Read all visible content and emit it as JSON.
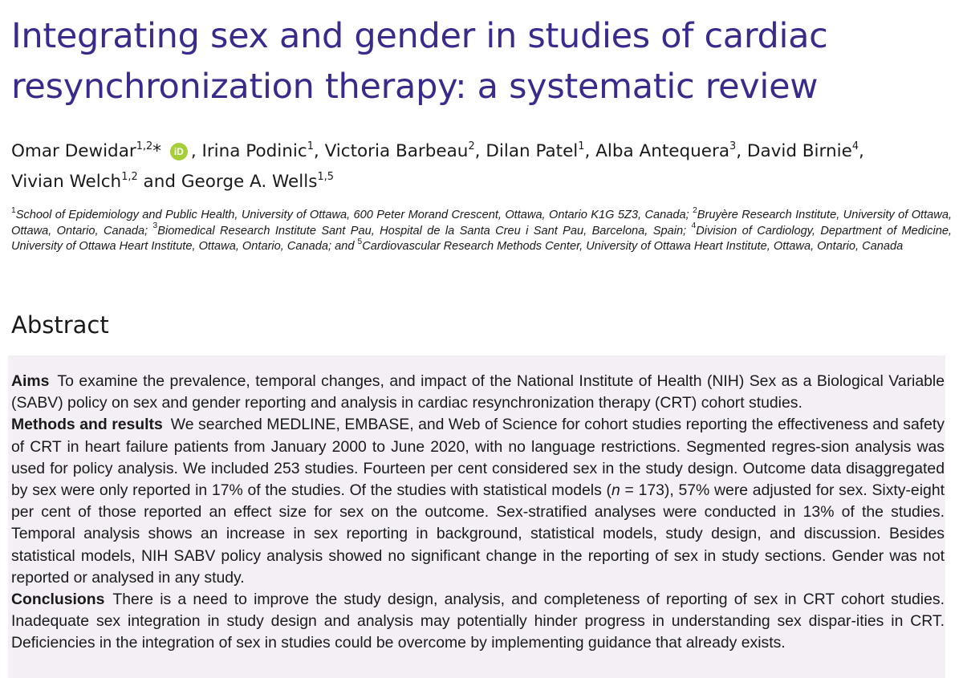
{
  "title": {
    "line1": "Integrating sex and gender in studies of cardiac",
    "line2": "resynchronization therapy: a systematic review"
  },
  "authors": [
    {
      "name": "Omar Dewidar",
      "aff": "1,2",
      "mark": "*",
      "orcid": "iD"
    },
    {
      "name": "Irina Podinic",
      "aff": "1"
    },
    {
      "name": "Victoria Barbeau",
      "aff": "2"
    },
    {
      "name": "Dilan Patel",
      "aff": "1"
    },
    {
      "name": "Alba Antequera",
      "aff": "3"
    },
    {
      "name": "David Birnie",
      "aff": "4"
    },
    {
      "name": "Vivian Welch",
      "aff": "1,2"
    },
    {
      "name": "George A. Wells",
      "aff": "1,5"
    }
  ],
  "authors_sep": ", ",
  "authors_and": " and ",
  "affiliations": [
    {
      "num": "1",
      "text": "School of Epidemiology and Public Health, University of Ottawa, 600 Peter Morand Crescent, Ottawa, Ontario K1G 5Z3, Canada; "
    },
    {
      "num": "2",
      "text": "Bruyère Research Institute, University of Ottawa, Ottawa, Ontario, Canada; "
    },
    {
      "num": "3",
      "text": "Biomedical Research Institute Sant Pau, Hospital de la Santa Creu i Sant Pau, Barcelona, Spain; "
    },
    {
      "num": "4",
      "text": "Division of Cardiology, Department of Medicine, University of Ottawa Heart Institute, Ottawa, Ontario, Canada; and "
    },
    {
      "num": "5",
      "text": "Cardiovascular Research Methods Center, University of Ottawa Heart Institute, Ottawa, Ontario, Canada"
    }
  ],
  "abstract": {
    "heading": "Abstract",
    "aims_label": "Aims",
    "aims_text": "To examine the prevalence, temporal changes, and impact of the National Institute of Health (NIH) Sex as a Biological Variable (SABV) policy on sex and gender reporting and analysis in cardiac resynchronization therapy (CRT) cohort studies.",
    "methods_label": "Methods and results",
    "methods_text_1": "We searched MEDLINE, EMBASE, and Web of Science for cohort studies reporting the effectiveness and safety of CRT in heart failure patients from January 2000 to June 2020, with no language restrictions. Segmented regres-sion analysis was used for policy analysis. We included 253 studies. Fourteen per cent considered sex in the study design. Outcome data disaggregated by sex were only reported in 17% of the studies. Of the studies with statistical models (",
    "methods_n": "n",
    "methods_text_2": " = 173), 57% were adjusted for sex. Sixty-eight per cent of those reported an effect size for sex on the outcome. Sex-stratified analyses were conducted in 13% of the studies. Temporal analysis shows an increase in sex reporting in background, statistical models, study design, and discussion. Besides statistical models, NIH SABV policy analysis showed no significant change in the reporting of sex in study sections. Gender was not reported or analysed in any study.",
    "conclusions_label": "Conclusions",
    "conclusions_text": "There is a need to improve the study design, analysis, and completeness of reporting of sex in CRT cohort studies. Inadequate sex integration in study design and analysis may potentially hinder progress in understanding sex dispar-ities in CRT. Deficiencies in the integration of sex in studies could be overcome by implementing guidance that already exists."
  },
  "colors": {
    "title": "#3b2a8c",
    "abstract_bg": "#f3eff5",
    "orcid": "#a6ce39"
  }
}
